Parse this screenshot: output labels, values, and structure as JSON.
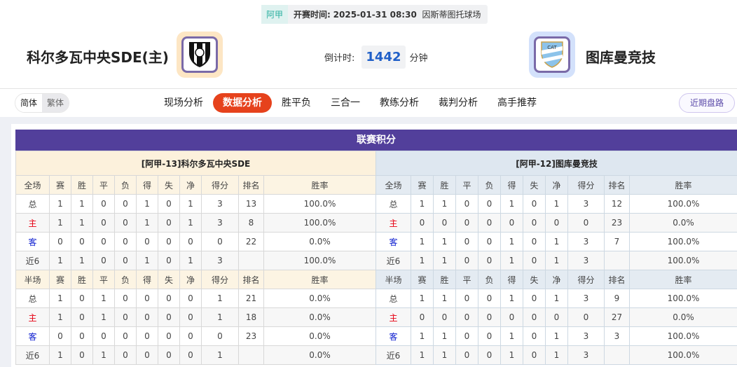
{
  "match": {
    "league": "阿甲",
    "kickoff_label": "开赛时间:",
    "kickoff_time": "2025-01-31 08:30",
    "venue": "因斯蒂图托球场",
    "home_team": "科尔多瓦中央SDE(主)",
    "away_team": "图库曼竞技",
    "countdown_label": "倒计时:",
    "countdown_value": "1442",
    "countdown_unit": "分钟"
  },
  "lang": {
    "simplified": "简体",
    "traditional": "繁体",
    "selected": "简体"
  },
  "nav": {
    "tabs": [
      "现场分析",
      "数据分析",
      "胜平负",
      "三合一",
      "教练分析",
      "裁判分析",
      "高手推荐"
    ],
    "active": "数据分析",
    "recent_button": "近期盘路"
  },
  "colors": {
    "accent": "#e6421c",
    "title_bar": "#523f9b",
    "home_label": "#e60012",
    "away_label": "#1020d0"
  },
  "standings": {
    "title": "联赛积分",
    "columns": [
      "赛",
      "胜",
      "平",
      "负",
      "得",
      "失",
      "净",
      "得分",
      "排名",
      "胜率"
    ],
    "teams": [
      {
        "header": "[阿甲-13]科尔多瓦中央SDE",
        "full": {
          "label": "全场",
          "rows": [
            [
              "总",
              "1",
              "1",
              "0",
              "0",
              "1",
              "0",
              "1",
              "3",
              "13",
              "100.0%"
            ],
            [
              "主",
              "1",
              "1",
              "0",
              "0",
              "1",
              "0",
              "1",
              "3",
              "8",
              "100.0%"
            ],
            [
              "客",
              "0",
              "0",
              "0",
              "0",
              "0",
              "0",
              "0",
              "0",
              "22",
              "0.0%"
            ],
            [
              "近6",
              "1",
              "1",
              "0",
              "0",
              "1",
              "0",
              "1",
              "3",
              "",
              "100.0%"
            ]
          ]
        },
        "half": {
          "label": "半场",
          "rows": [
            [
              "总",
              "1",
              "0",
              "1",
              "0",
              "0",
              "0",
              "0",
              "1",
              "21",
              "0.0%"
            ],
            [
              "主",
              "1",
              "0",
              "1",
              "0",
              "0",
              "0",
              "0",
              "1",
              "18",
              "0.0%"
            ],
            [
              "客",
              "0",
              "0",
              "0",
              "0",
              "0",
              "0",
              "0",
              "0",
              "23",
              "0.0%"
            ],
            [
              "近6",
              "1",
              "0",
              "1",
              "0",
              "0",
              "0",
              "0",
              "1",
              "",
              "0.0%"
            ]
          ]
        }
      },
      {
        "header": "[阿甲-12]图库曼竞技",
        "full": {
          "label": "全场",
          "rows": [
            [
              "总",
              "1",
              "1",
              "0",
              "0",
              "1",
              "0",
              "1",
              "3",
              "12",
              "100.0%"
            ],
            [
              "主",
              "0",
              "0",
              "0",
              "0",
              "0",
              "0",
              "0",
              "0",
              "23",
              "0.0%"
            ],
            [
              "客",
              "1",
              "1",
              "0",
              "0",
              "1",
              "0",
              "1",
              "3",
              "7",
              "100.0%"
            ],
            [
              "近6",
              "1",
              "1",
              "0",
              "0",
              "1",
              "0",
              "1",
              "3",
              "",
              "100.0%"
            ]
          ]
        },
        "half": {
          "label": "半场",
          "rows": [
            [
              "总",
              "1",
              "1",
              "0",
              "0",
              "1",
              "0",
              "1",
              "3",
              "9",
              "100.0%"
            ],
            [
              "主",
              "0",
              "0",
              "0",
              "0",
              "0",
              "0",
              "0",
              "0",
              "27",
              "0.0%"
            ],
            [
              "客",
              "1",
              "1",
              "0",
              "0",
              "1",
              "0",
              "1",
              "3",
              "3",
              "100.0%"
            ],
            [
              "近6",
              "1",
              "1",
              "0",
              "0",
              "1",
              "0",
              "1",
              "3",
              "",
              "100.0%"
            ]
          ]
        }
      }
    ]
  }
}
